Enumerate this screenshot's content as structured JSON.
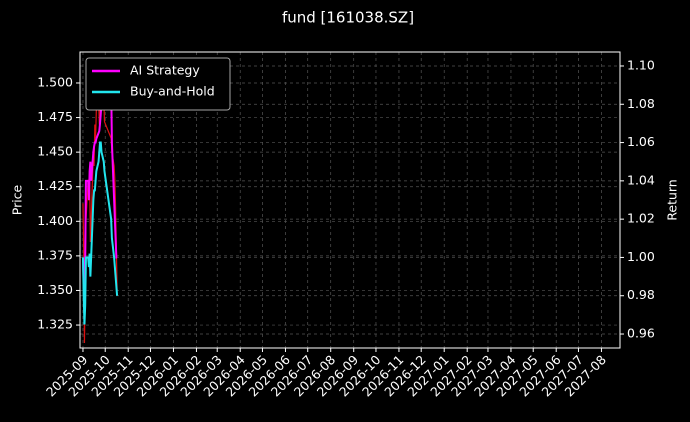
{
  "chart_data": {
    "type": "line",
    "title": "fund [161038.SZ]",
    "ylabel": "Price",
    "y2label": "Return",
    "x": [
      "2025-09-01",
      "2025-09-02",
      "2025-09-03",
      "2025-09-04",
      "2025-09-05",
      "2025-09-08",
      "2025-09-09",
      "2025-09-10",
      "2025-09-11",
      "2025-09-12",
      "2025-09-15",
      "2025-09-16",
      "2025-09-17",
      "2025-09-18",
      "2025-09-19",
      "2025-09-22",
      "2025-09-23",
      "2025-09-24",
      "2025-09-25",
      "2025-09-26",
      "2025-09-29",
      "2025-09-30",
      "2025-10-09",
      "2025-10-10",
      "2025-10-13",
      "2025-10-14",
      "2025-10-15",
      "2025-10-16",
      "2025-10-17"
    ],
    "xlim": [
      "2025-08-28",
      "2027-08-26"
    ],
    "xticks": [
      "2025-09",
      "2025-10",
      "2025-11",
      "2025-12",
      "2026-01",
      "2026-02",
      "2026-03",
      "2026-04",
      "2026-05",
      "2026-06",
      "2026-07",
      "2026-08",
      "2026-09",
      "2026-10",
      "2026-11",
      "2026-12",
      "2027-01",
      "2027-02",
      "2027-03",
      "2027-04",
      "2027-05",
      "2027-06",
      "2027-07",
      "2027-08"
    ],
    "ylim": [
      1.3084,
      1.5224
    ],
    "yticks": [
      1.325,
      {
        "value": 1.35,
        "label": "1.350"
      },
      1.375,
      {
        "value": 1.4,
        "label": "1.400"
      },
      1.425,
      {
        "value": 1.45,
        "label": "1.450"
      },
      1.475,
      {
        "value": 1.5,
        "label": "1.500"
      }
    ],
    "y2lim": [
      0.9527,
      1.1073
    ],
    "y2ticks": [
      0.96,
      0.98,
      {
        "value": 1.0,
        "label": "1.00"
      },
      1.02,
      1.04,
      1.06,
      1.08,
      {
        "value": 1.1,
        "label": "1.10"
      }
    ],
    "grid": true,
    "legend": "upper left",
    "series": [
      {
        "color": "#dd1111",
        "width": 1.2,
        "values": [
          1.413,
          1.38,
          1.312,
          1.35,
          1.4,
          1.43,
          1.415,
          1.432,
          1.385,
          1.4,
          1.45,
          1.44,
          1.47,
          1.46,
          1.48,
          1.49,
          1.47,
          1.492,
          1.5,
          1.48,
          1.49,
          1.472,
          1.46,
          1.45,
          1.44,
          1.43,
          1.41,
          1.38,
          1.35
        ]
      },
      {
        "name": "AI Strategy",
        "color": "#ff00ff",
        "width": 2,
        "axis": "y2",
        "values": [
          1.0,
          0.985,
          0.98,
          1.0,
          1.04,
          1.04,
          1.03,
          1.045,
          1.05,
          1.04,
          1.055,
          1.058,
          1.06,
          1.06,
          1.062,
          1.065,
          1.066,
          1.07,
          1.075,
          1.08,
          1.085,
          1.09,
          1.09,
          1.06,
          1.03,
          1.02,
          1.01,
          1.0,
          1.0
        ]
      },
      {
        "name": "Buy-and-Hold",
        "color": "#22e5ee",
        "width": 2,
        "axis": "y2",
        "values": [
          1.0,
          0.98,
          0.965,
          0.975,
          1.0,
          1.0,
          0.995,
          1.002,
          0.99,
          1.0,
          1.03,
          1.035,
          1.035,
          1.04,
          1.045,
          1.05,
          1.055,
          1.06,
          1.06,
          1.055,
          1.05,
          1.045,
          1.02,
          1.01,
          1.0,
          0.995,
          0.99,
          0.985,
          0.98
        ]
      }
    ]
  }
}
